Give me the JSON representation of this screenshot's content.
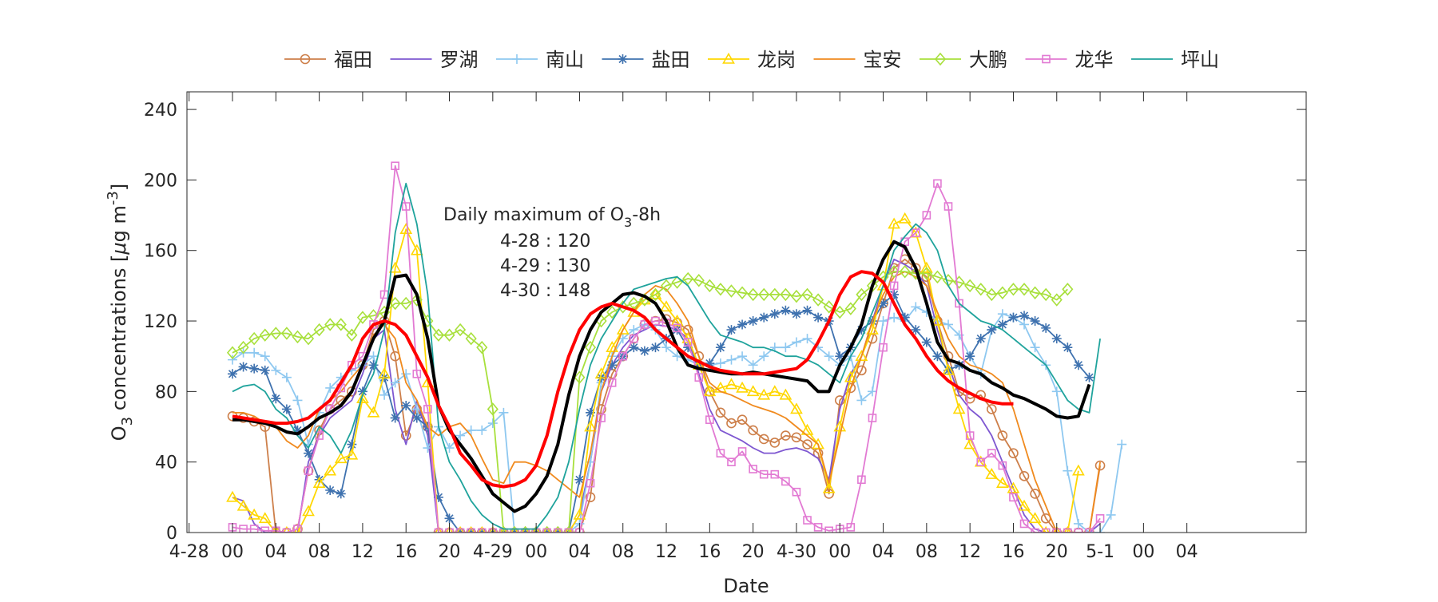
{
  "chart_data": {
    "type": "line",
    "xlabel": "Date",
    "ylabel": {
      "main": "O",
      "sub": "3",
      "rest": " concentrations [",
      "mu": "μ",
      "g": "g m",
      "sup": "-3",
      "close": "]"
    },
    "ylim": [
      0,
      250
    ],
    "yticks": [
      0,
      40,
      80,
      120,
      160,
      200,
      240
    ],
    "xlim": [
      0,
      99
    ],
    "x_unit": "hours since 4-28 00",
    "xticks": [
      {
        "x": -4,
        "label": "4-28"
      },
      {
        "x": 0,
        "label": "00"
      },
      {
        "x": 4,
        "label": "04"
      },
      {
        "x": 8,
        "label": "08"
      },
      {
        "x": 12,
        "label": "12"
      },
      {
        "x": 16,
        "label": "16"
      },
      {
        "x": 20,
        "label": "20"
      },
      {
        "x": 24,
        "label": "4-29"
      },
      {
        "x": 28,
        "label": "00"
      },
      {
        "x": 32,
        "label": "04"
      },
      {
        "x": 36,
        "label": "08"
      },
      {
        "x": 40,
        "label": "12"
      },
      {
        "x": 44,
        "label": "16"
      },
      {
        "x": 48,
        "label": "20"
      },
      {
        "x": 52,
        "label": "4-30"
      },
      {
        "x": 56,
        "label": "00"
      },
      {
        "x": 60,
        "label": "04"
      },
      {
        "x": 64,
        "label": "08"
      },
      {
        "x": 68,
        "label": "12"
      },
      {
        "x": 72,
        "label": "16"
      },
      {
        "x": 76,
        "label": "20"
      },
      {
        "x": 80,
        "label": "5-1"
      },
      {
        "x": 84,
        "label": "00"
      },
      {
        "x": 88,
        "label": "04"
      }
    ],
    "grid": false,
    "legend_position": "top",
    "annotation": {
      "title_main": "Daily maximum of O",
      "title_sub": "3",
      "title_rest": "-8h",
      "lines": [
        "4-28 : 120",
        "4-29 : 130",
        "4-30 : 148"
      ]
    },
    "series": [
      {
        "name": "福田",
        "color": "#CD7F4A",
        "marker": "circle",
        "values": [
          66,
          65,
          63,
          60,
          0,
          0,
          2,
          35,
          58,
          70,
          75,
          80,
          95,
          115,
          120,
          100,
          55,
          70,
          60,
          0,
          0,
          0,
          0,
          0,
          0,
          0,
          0,
          0,
          0,
          0,
          0,
          0,
          0,
          20,
          70,
          90,
          100,
          110,
          118,
          120,
          121,
          119,
          115,
          100,
          80,
          68,
          62,
          64,
          58,
          53,
          51,
          55,
          54,
          50,
          45,
          22,
          75,
          82,
          92,
          110,
          130,
          150,
          155,
          150,
          145,
          120,
          100,
          80,
          76,
          78,
          70,
          55,
          45,
          32,
          22,
          8,
          0,
          0,
          0,
          0,
          38
        ]
      },
      {
        "name": "罗湖",
        "color": "#7E57D1",
        "marker": "none",
        "values": [
          20,
          18,
          5,
          0,
          0,
          0,
          0,
          40,
          55,
          65,
          70,
          75,
          90,
          110,
          115,
          70,
          50,
          75,
          55,
          0,
          0,
          0,
          0,
          0,
          0,
          0,
          0,
          0,
          0,
          0,
          0,
          0,
          10,
          40,
          80,
          95,
          105,
          112,
          115,
          118,
          117,
          115,
          110,
          90,
          70,
          58,
          55,
          52,
          48,
          45,
          45,
          47,
          48,
          46,
          42,
          30,
          70,
          90,
          100,
          120,
          140,
          155,
          152,
          148,
          140,
          115,
          95,
          78,
          70,
          65,
          55,
          40,
          25,
          10,
          2,
          0,
          0,
          0,
          0,
          0,
          5
        ]
      },
      {
        "name": "南山",
        "color": "#8EC8F0",
        "marker": "plus",
        "values": [
          98,
          102,
          102,
          100,
          92,
          88,
          75,
          50,
          68,
          82,
          88,
          92,
          95,
          100,
          78,
          85,
          90,
          70,
          48,
          60,
          48,
          55,
          58,
          58,
          62,
          68,
          0,
          0,
          0,
          0,
          0,
          0,
          5,
          40,
          85,
          100,
          110,
          115,
          118,
          115,
          105,
          100,
          98,
          95,
          95,
          96,
          98,
          100,
          95,
          100,
          105,
          105,
          108,
          110,
          105,
          100,
          95,
          100,
          75,
          80,
          120,
          122,
          120,
          128,
          125,
          120,
          118,
          112,
          100,
          90,
          115,
          124,
          122,
          118,
          105,
          95,
          80,
          35,
          5,
          0,
          0,
          10,
          50
        ]
      },
      {
        "name": "盐田",
        "color": "#3F72AF",
        "marker": "asterisk",
        "values": [
          90,
          94,
          93,
          92,
          76,
          70,
          58,
          45,
          30,
          24,
          22,
          50,
          80,
          95,
          88,
          65,
          72,
          65,
          60,
          20,
          8,
          0,
          0,
          0,
          0,
          0,
          0,
          0,
          0,
          0,
          0,
          0,
          30,
          68,
          88,
          95,
          100,
          105,
          103,
          105,
          110,
          115,
          105,
          95,
          96,
          105,
          115,
          118,
          120,
          122,
          124,
          126,
          124,
          126,
          122,
          120,
          100,
          105,
          115,
          120,
          130,
          135,
          122,
          115,
          108,
          100,
          92,
          95,
          100,
          110,
          115,
          118,
          122,
          123,
          120,
          116,
          110,
          105,
          95,
          88
        ]
      },
      {
        "name": "龙岗",
        "color": "#FFD700",
        "marker": "triangle",
        "values": [
          20,
          15,
          10,
          8,
          0,
          0,
          0,
          12,
          28,
          35,
          42,
          44,
          76,
          68,
          90,
          150,
          172,
          160,
          85,
          0,
          0,
          0,
          0,
          0,
          0,
          0,
          0,
          0,
          0,
          0,
          0,
          0,
          10,
          60,
          90,
          105,
          115,
          125,
          132,
          135,
          128,
          120,
          110,
          95,
          80,
          82,
          84,
          82,
          80,
          78,
          80,
          78,
          70,
          58,
          50,
          25,
          60,
          88,
          100,
          115,
          140,
          175,
          178,
          170,
          150,
          120,
          92,
          70,
          50,
          40,
          33,
          28,
          25,
          15,
          8,
          0,
          0,
          0,
          35
        ]
      },
      {
        "name": "宝安",
        "color": "#F08A1E",
        "marker": "none",
        "values": [
          68,
          68,
          66,
          62,
          60,
          52,
          48,
          55,
          70,
          75,
          80,
          88,
          95,
          112,
          118,
          110,
          85,
          75,
          60,
          55,
          60,
          62,
          55,
          42,
          30,
          28,
          40,
          40,
          38,
          35,
          30,
          25,
          20,
          45,
          80,
          100,
          115,
          125,
          135,
          140,
          138,
          130,
          120,
          100,
          85,
          80,
          78,
          75,
          72,
          70,
          68,
          65,
          60,
          55,
          50,
          28,
          55,
          82,
          100,
          120,
          135,
          145,
          148,
          145,
          140,
          125,
          110,
          100,
          95,
          93,
          90,
          85,
          70,
          50,
          30,
          15,
          0,
          0,
          0,
          0,
          40
        ]
      },
      {
        "name": "大鹏",
        "color": "#A8E03C",
        "marker": "diamond",
        "values": [
          102,
          105,
          110,
          112,
          113,
          113,
          111,
          110,
          115,
          118,
          118,
          112,
          122,
          123,
          125,
          130,
          130,
          132,
          120,
          112,
          112,
          115,
          110,
          105,
          70,
          0,
          0,
          0,
          0,
          0,
          0,
          0,
          88,
          105,
          120,
          125,
          128,
          130,
          132,
          135,
          140,
          142,
          144,
          143,
          140,
          138,
          137,
          136,
          135,
          135,
          135,
          135,
          134,
          135,
          132,
          128,
          125,
          127,
          135,
          140,
          145,
          148,
          148,
          147,
          147,
          145,
          143,
          142,
          140,
          138,
          135,
          136,
          138,
          138,
          136,
          135,
          132,
          138
        ]
      },
      {
        "name": "龙华",
        "color": "#E27AD3",
        "marker": "square",
        "values": [
          3,
          2,
          2,
          1,
          1,
          0,
          2,
          35,
          55,
          70,
          82,
          95,
          100,
          118,
          135,
          208,
          185,
          90,
          70,
          0,
          0,
          0,
          0,
          0,
          0,
          0,
          0,
          0,
          0,
          0,
          0,
          0,
          0,
          28,
          65,
          85,
          100,
          110,
          118,
          120,
          119,
          116,
          108,
          88,
          64,
          45,
          40,
          46,
          36,
          33,
          33,
          29,
          23,
          7,
          3,
          1,
          2,
          3,
          30,
          65,
          105,
          140,
          165,
          170,
          180,
          198,
          185,
          130,
          55,
          40,
          45,
          38,
          20,
          5,
          0,
          0,
          0,
          0,
          0,
          0,
          8
        ]
      },
      {
        "name": "坪山",
        "color": "#1FA39C",
        "marker": "none",
        "values": [
          80,
          83,
          84,
          80,
          70,
          65,
          55,
          48,
          60,
          55,
          45,
          58,
          78,
          90,
          115,
          170,
          198,
          175,
          135,
          60,
          40,
          30,
          18,
          10,
          5,
          2,
          2,
          2,
          2,
          10,
          20,
          40,
          70,
          95,
          110,
          120,
          130,
          138,
          140,
          142,
          144,
          145,
          140,
          130,
          120,
          112,
          110,
          108,
          105,
          105,
          103,
          100,
          100,
          98,
          95,
          90,
          85,
          100,
          110,
          125,
          140,
          160,
          168,
          175,
          170,
          160,
          140,
          130,
          125,
          120,
          118,
          115,
          110,
          105,
          100,
          95,
          85,
          75,
          70,
          68,
          110
        ]
      },
      {
        "name": "",
        "color": "#000000",
        "marker": "none",
        "role": "mean",
        "values": [
          64,
          64,
          63,
          62,
          60,
          57,
          56,
          60,
          65,
          68,
          72,
          80,
          95,
          110,
          120,
          145,
          146,
          135,
          110,
          72,
          58,
          50,
          42,
          32,
          22,
          17,
          12,
          15,
          22,
          32,
          50,
          78,
          100,
          115,
          125,
          130,
          135,
          136,
          134,
          130,
          120,
          105,
          95,
          93,
          92,
          91,
          90,
          90,
          91,
          90,
          89,
          88,
          87,
          86,
          80,
          80,
          95,
          105,
          118,
          140,
          155,
          165,
          162,
          150,
          130,
          108,
          98,
          96,
          92,
          90,
          85,
          82,
          78,
          76,
          73,
          70,
          66,
          65,
          66,
          84
        ]
      },
      {
        "name": "",
        "color": "#FF0000",
        "marker": "none",
        "role": "8h-mean",
        "values": [
          66,
          65,
          64,
          63,
          62,
          62,
          63,
          65,
          70,
          75,
          85,
          95,
          110,
          118,
          120,
          118,
          112,
          100,
          88,
          72,
          60,
          45,
          38,
          30,
          27,
          26,
          27,
          30,
          38,
          55,
          80,
          100,
          115,
          124,
          128,
          130,
          128,
          126,
          122,
          115,
          110,
          105,
          100,
          97,
          94,
          92,
          91,
          90,
          90,
          90,
          91,
          92,
          93,
          98,
          108,
          120,
          135,
          145,
          148,
          147,
          142,
          130,
          118,
          110,
          100,
          92,
          86,
          82,
          79,
          76,
          74,
          73,
          73
        ]
      }
    ]
  }
}
